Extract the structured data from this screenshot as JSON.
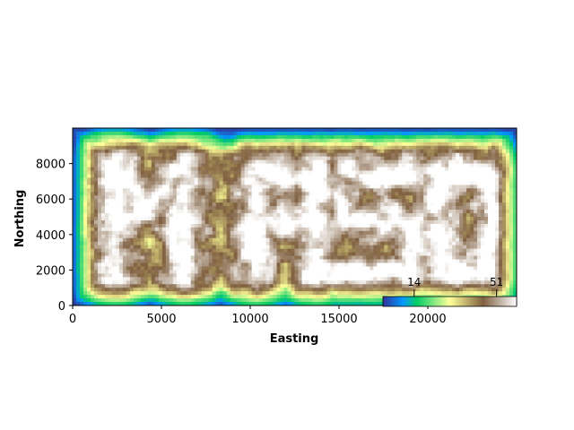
{
  "chart_data": {
    "type": "heatmap",
    "title": "",
    "subtitle": "",
    "xlabel": "Easting",
    "ylabel": "Northing",
    "xlim": [
      0,
      25000
    ],
    "ylim": [
      0,
      10000
    ],
    "x_ticks": [
      0,
      5000,
      10000,
      15000,
      20000
    ],
    "x_tick_labels": [
      "0",
      "5000",
      "10000",
      "15000",
      "20000"
    ],
    "y_ticks": [
      0,
      2000,
      4000,
      6000,
      8000
    ],
    "y_tick_labels": [
      "0",
      "2000",
      "4000",
      "6000",
      "8000"
    ],
    "grid": false,
    "colormap": "terrain",
    "colorbar": {
      "orientation": "horizontal",
      "placement": "inset lower-right",
      "min": 0,
      "max": 60,
      "ticks": [
        14,
        51
      ],
      "tick_labels": [
        "14",
        "51"
      ]
    },
    "description_series": [
      {
        "letters": [
          "M",
          "A",
          "S",
          "O"
        ],
        "high_values_region": "letter-shaped plateaus",
        "value_range_estimate": [
          0,
          60
        ]
      }
    ],
    "colors": {
      "low": "#3333cc",
      "mid_low": "#00cc66",
      "mid": "#ffff99",
      "mid_high": "#806040",
      "high": "#ffffff"
    }
  }
}
